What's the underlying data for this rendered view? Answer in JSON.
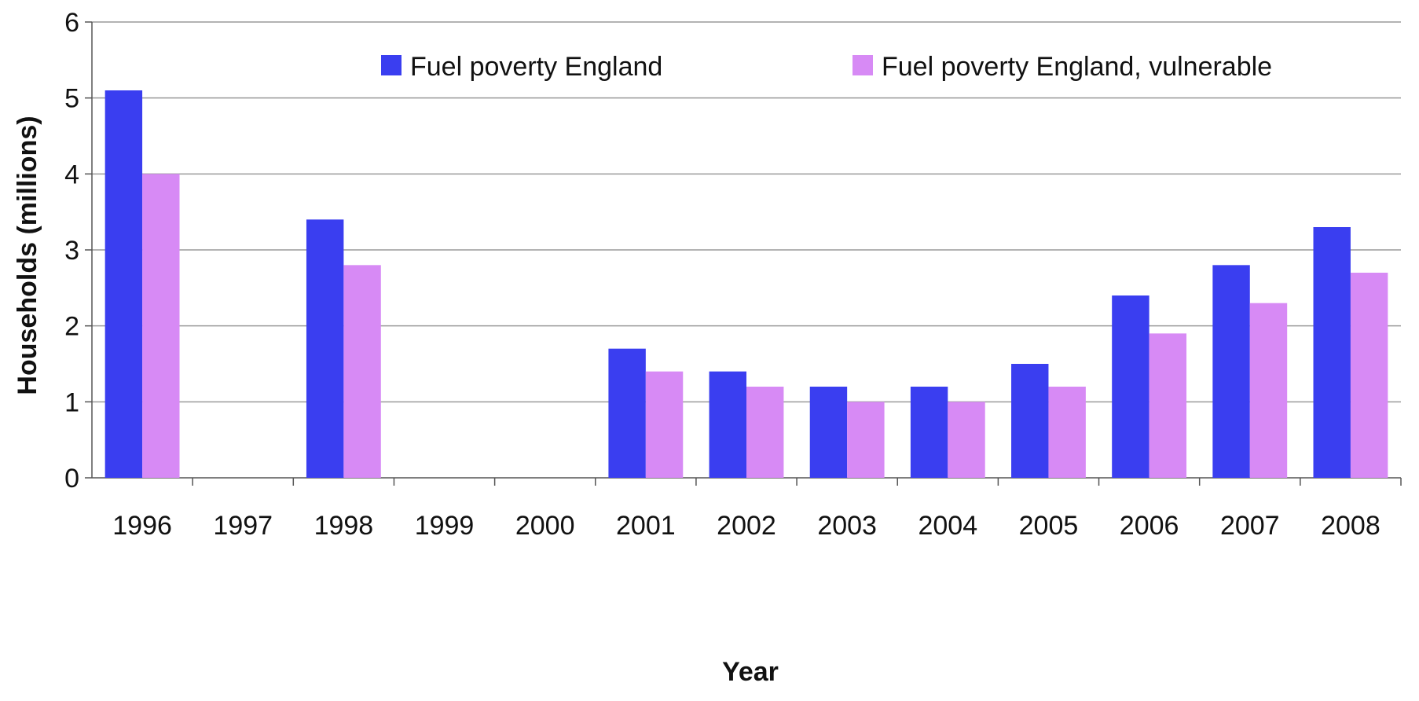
{
  "chart_data": {
    "type": "bar",
    "title": "",
    "xlabel": "Year",
    "ylabel": "Households (millions)",
    "ylim": [
      0,
      6
    ],
    "yticks": [
      0,
      1,
      2,
      3,
      4,
      5,
      6
    ],
    "grid": true,
    "legend_position": "top-right",
    "categories": [
      "1996",
      "1997",
      "1998",
      "1999",
      "2000",
      "2001",
      "2002",
      "2003",
      "2004",
      "2005",
      "2006",
      "2007",
      "2008"
    ],
    "series": [
      {
        "name": "Fuel poverty England",
        "color": "#3a3ef0",
        "values": [
          5.1,
          null,
          3.4,
          null,
          null,
          1.7,
          1.4,
          1.2,
          1.2,
          1.5,
          2.4,
          2.8,
          3.3
        ]
      },
      {
        "name": "Fuel poverty England, vulnerable",
        "color": "#d78af5",
        "values": [
          4.0,
          null,
          2.8,
          null,
          null,
          1.4,
          1.2,
          1.0,
          1.0,
          1.2,
          1.9,
          2.3,
          2.7
        ]
      }
    ]
  }
}
